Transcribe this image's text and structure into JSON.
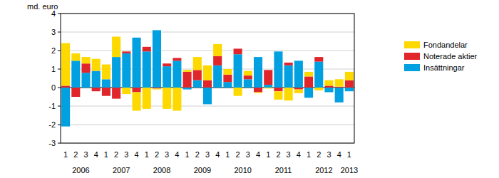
{
  "chart_data": {
    "type": "bar",
    "stacked": true,
    "grid": true,
    "legend": "right",
    "y_label": "md. euro",
    "categories": [
      "1",
      "2",
      "3",
      "4",
      "1",
      "2",
      "3",
      "4",
      "1",
      "2",
      "3",
      "4",
      "1",
      "2",
      "3",
      "4",
      "1",
      "2",
      "3",
      "4",
      "1",
      "2",
      "3",
      "4",
      "1",
      "2",
      "3",
      "4",
      "1"
    ],
    "x_groups": [
      "2006",
      "2007",
      "2008",
      "2009",
      "2010",
      "2011",
      "2012",
      "2013"
    ],
    "ylim": [
      -3,
      4
    ],
    "yticks": [
      -3,
      -2,
      -1,
      0,
      1,
      2,
      3,
      4
    ],
    "series": [
      {
        "name": "Insättningar",
        "color": "#00a0e1",
        "values": [
          -2.1,
          1.45,
          0.8,
          0.9,
          0.45,
          1.65,
          1.85,
          2.7,
          1.95,
          3.1,
          1.15,
          1.45,
          -0.1,
          0.4,
          -0.9,
          1.2,
          0.3,
          1.8,
          0.45,
          1.65,
          0.15,
          1.95,
          1.2,
          1.45,
          -0.55,
          1.4,
          -0.25,
          -0.8,
          -0.2
        ]
      },
      {
        "name": "Noterade aktier",
        "color": "#e0252b",
        "values": [
          0.1,
          -0.5,
          0.5,
          -0.2,
          -0.45,
          -0.6,
          0.1,
          -0.25,
          0.25,
          -0.05,
          0.15,
          0.15,
          0.85,
          0.55,
          0.4,
          0.5,
          0.4,
          0.3,
          0.2,
          -0.25,
          0.8,
          -0.2,
          0.15,
          -0.1,
          0.6,
          0.25,
          0.1,
          0.05,
          0.4
        ]
      },
      {
        "name": "Fondandelar",
        "color": "#fdd900",
        "values": [
          2.3,
          0.4,
          0.35,
          0.65,
          0.8,
          1.1,
          -0.35,
          -1.0,
          -1.15,
          -0.05,
          -1.15,
          -1.25,
          0.1,
          0.7,
          0.8,
          0.65,
          0.3,
          -0.45,
          0.25,
          -0.05,
          -0.05,
          -0.45,
          -0.7,
          -0.2,
          0.25,
          -0.15,
          0.3,
          0.4,
          0.45
        ]
      }
    ]
  }
}
